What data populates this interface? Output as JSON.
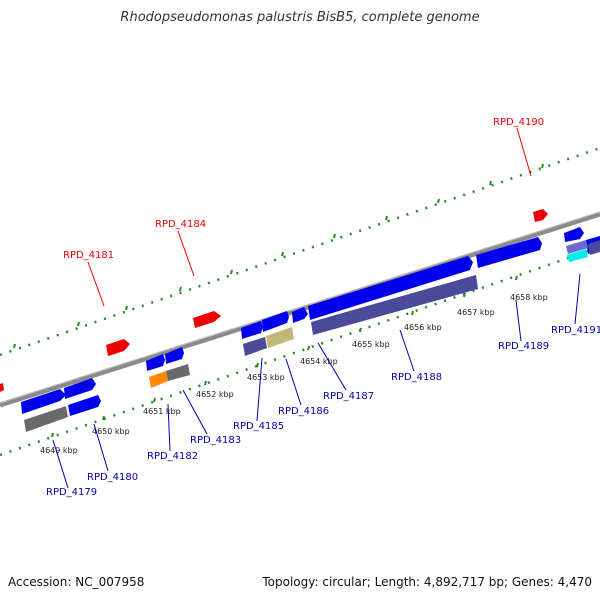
{
  "title": "Rhodopseudomonas palustris BisB5, complete genome",
  "footer": {
    "accession": "Accession: NC_007958",
    "summary": "Topology: circular; Length: 4,892,717 bp; Genes: 4,470"
  },
  "colors": {
    "backbone": "#777777",
    "tick": "#228b22",
    "forward_gene": "#0000ee",
    "reverse_label": "#0000aa",
    "rna_gene": "#ee0000",
    "domain_dark": "#4a4a9a",
    "domain_grey": "#6a6a6a",
    "domain_tan": "#c0b878",
    "domain_orange": "#ff8800",
    "domain_cyan": "#00eeee"
  },
  "scale_ticks": [
    {
      "label": "4649 kbp"
    },
    {
      "label": "4650 kbp"
    },
    {
      "label": "4651 kbp"
    },
    {
      "label": "4652 kbp"
    },
    {
      "label": "4653 kbp"
    },
    {
      "label": "4654 kbp"
    },
    {
      "label": "4655 kbp"
    },
    {
      "label": "4656 kbp"
    },
    {
      "label": "4657 kbp"
    },
    {
      "label": "4658 kbp"
    }
  ],
  "gene_labels": {
    "red": [
      "RPD_4181",
      "RPD_4184",
      "RPD_4190"
    ],
    "blue": [
      "RPD_4179",
      "RPD_4180",
      "RPD_4182",
      "RPD_4183",
      "RPD_4185",
      "RPD_4186",
      "RPD_4187",
      "RPD_4188",
      "RPD_4189",
      "RPD_4191"
    ]
  }
}
